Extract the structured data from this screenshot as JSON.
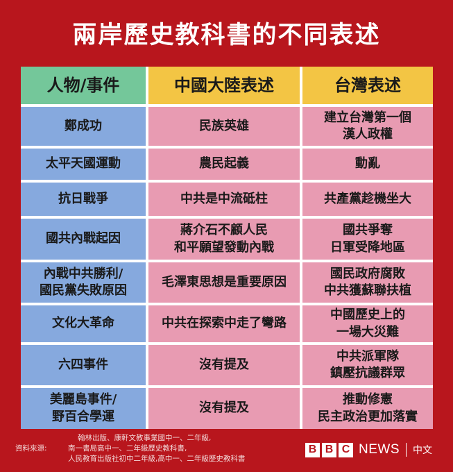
{
  "title": "兩岸歷史教科書的不同表述",
  "table": {
    "headers": [
      "人物/事件",
      "中國大陸表述",
      "台灣表述"
    ],
    "rows": [
      [
        "鄭成功",
        "民族英雄",
        "建立台灣第一個\n漢人政權"
      ],
      [
        "太平天國運動",
        "農民起義",
        "動亂"
      ],
      [
        "抗日戰爭",
        "中共是中流砥柱",
        "共產黨趁機坐大"
      ],
      [
        "國共內戰起因",
        "蔣介石不顧人民\n和平願望發動內戰",
        "國共爭奪\n日軍受降地區"
      ],
      [
        "內戰中共勝利/\n國民黨失敗原因",
        "毛澤東思想是重要原因",
        "國民政府腐敗\n中共獲蘇聯扶植"
      ],
      [
        "文化大革命",
        "中共在探索中走了彎路",
        "中國歷史上的\n一場大災難"
      ],
      [
        "六四事件",
        "沒有提及",
        "中共派軍隊\n鎮壓抗議群眾"
      ],
      [
        "美麗島事件/\n野百合學運",
        "沒有提及",
        "推動修憲\n民主政治更加落實"
      ]
    ]
  },
  "source": {
    "label": "資料來源:",
    "lines": [
      "翰林出版、康軒文教事業國中一、二年級,",
      "南一書局高中一、二年級歷史教科書,",
      "人民教育出版社初中二年級,高中一、二年級歷史教科書"
    ]
  },
  "brand": {
    "bbc_letters": [
      "B",
      "B",
      "C"
    ],
    "news": "NEWS",
    "language": "中文"
  },
  "colors": {
    "background": "#b8161d",
    "header_first": "#74c79a",
    "header_other": "#f3c544",
    "first_column": "#86a9de",
    "other_columns": "#e89bb2"
  }
}
